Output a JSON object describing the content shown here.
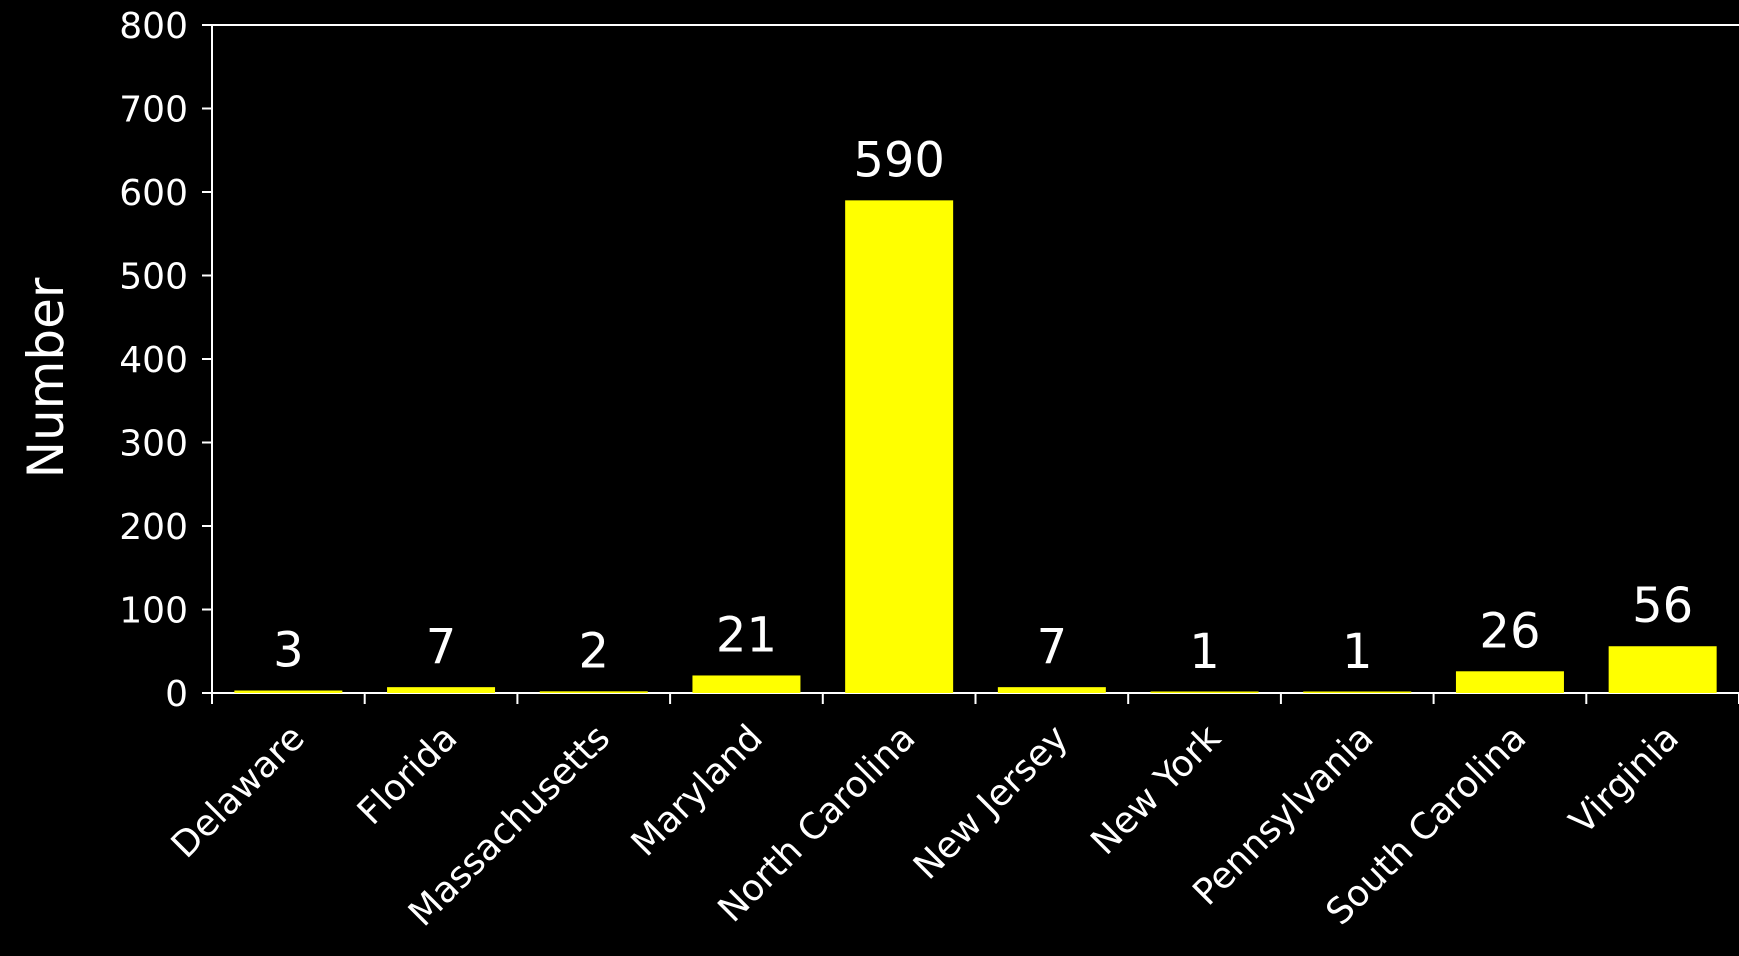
{
  "chart_data": {
    "type": "bar",
    "categories": [
      "Delaware",
      "Florida",
      "Massachusetts",
      "Maryland",
      "North Carolina",
      "New Jersey",
      "New York",
      "Pennsylvania",
      "South Carolina",
      "Virginia"
    ],
    "values": [
      3,
      7,
      2,
      21,
      590,
      7,
      1,
      1,
      26,
      56
    ],
    "data_labels": [
      "3",
      "7",
      "2",
      "21",
      "590",
      "7",
      "1",
      "1",
      "26",
      "56"
    ],
    "title": "",
    "xlabel": "",
    "ylabel": "Number",
    "ylim": [
      0,
      800
    ],
    "yticks": [
      0,
      100,
      200,
      300,
      400,
      500,
      600,
      700,
      800
    ],
    "ytick_labels": [
      "0",
      "100",
      "200",
      "300",
      "400",
      "500",
      "600",
      "700",
      "800"
    ],
    "grid": false,
    "legend": "none"
  },
  "colors": {
    "background": "#000000",
    "bar": "#ffff00",
    "axis": "#ffffff",
    "text": "#ffffff"
  }
}
